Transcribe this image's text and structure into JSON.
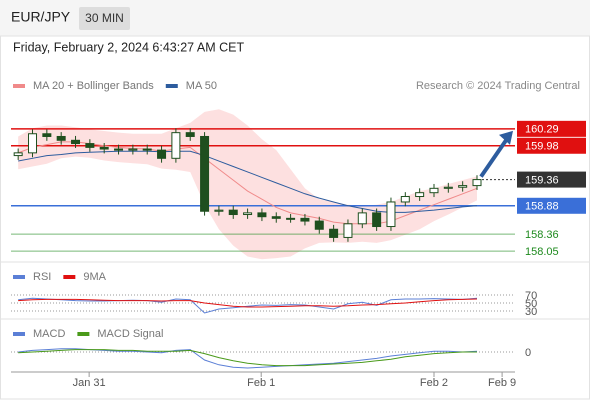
{
  "header": {
    "symbol": "EUR/JPY",
    "interval": "30 MIN",
    "datetime": "Friday, February 2, 2024 6:43:27 AM CET"
  },
  "chart_data": [
    {
      "type": "candlestick",
      "source": "Research © 2024 Trading Central",
      "x": [
        1,
        3,
        5,
        7,
        9,
        11,
        13,
        15,
        17,
        19,
        21,
        23,
        25,
        27,
        29,
        31,
        33,
        35,
        37,
        39,
        41,
        43,
        45,
        47,
        49,
        51,
        53,
        55,
        57,
        59,
        61,
        63,
        65
      ],
      "open": [
        159.8,
        159.85,
        160.2,
        160.15,
        160.08,
        160.02,
        159.95,
        159.92,
        159.9,
        159.92,
        159.9,
        159.75,
        160.22,
        160.15,
        158.78,
        158.8,
        158.72,
        158.75,
        158.68,
        158.65,
        158.65,
        158.6,
        158.45,
        158.3,
        158.55,
        158.75,
        158.5,
        158.95,
        159.05,
        159.12,
        159.2,
        159.22,
        159.25
      ],
      "high": [
        159.93,
        160.28,
        160.28,
        160.23,
        160.16,
        160.1,
        160.03,
        160.0,
        160.0,
        160.0,
        159.98,
        160.3,
        160.3,
        160.23,
        158.88,
        158.88,
        158.83,
        158.83,
        158.76,
        158.73,
        158.73,
        158.68,
        158.53,
        158.63,
        158.83,
        158.83,
        159.03,
        159.13,
        159.2,
        159.28,
        159.3,
        159.33,
        159.44
      ],
      "low": [
        159.72,
        159.77,
        160.07,
        160.0,
        159.94,
        159.87,
        159.84,
        159.82,
        159.82,
        159.82,
        159.67,
        159.67,
        160.07,
        158.7,
        158.7,
        158.64,
        158.64,
        158.6,
        158.57,
        158.57,
        158.52,
        158.37,
        158.22,
        158.22,
        158.47,
        158.42,
        158.42,
        158.87,
        158.97,
        159.04,
        159.12,
        159.14,
        159.17
      ],
      "close": [
        159.85,
        160.2,
        160.15,
        160.08,
        160.02,
        159.95,
        159.92,
        159.9,
        159.92,
        159.9,
        159.75,
        160.22,
        160.15,
        158.78,
        158.8,
        158.72,
        158.75,
        158.68,
        158.65,
        158.65,
        158.6,
        158.45,
        158.3,
        158.55,
        158.75,
        158.5,
        158.95,
        159.05,
        159.12,
        159.2,
        159.22,
        159.25,
        159.36
      ],
      "series": [
        {
          "name": "MA 20 + Bollinger Bands",
          "color": "#f08a8a",
          "band_color": "#fde0e0",
          "values": [
            159.85,
            159.95,
            160.0,
            160.05,
            160.05,
            160.02,
            159.98,
            159.95,
            159.93,
            159.92,
            159.88,
            159.92,
            159.95,
            159.75,
            159.55,
            159.35,
            159.15,
            159.0,
            158.85,
            158.75,
            158.7,
            158.65,
            158.58,
            158.55,
            158.55,
            158.55,
            158.6,
            158.7,
            158.8,
            158.9,
            159.0,
            159.1,
            159.2
          ],
          "upper": [
            160.15,
            160.3,
            160.35,
            160.35,
            160.32,
            160.28,
            160.25,
            160.22,
            160.2,
            160.2,
            160.2,
            160.3,
            160.4,
            160.6,
            160.65,
            160.55,
            160.35,
            160.1,
            159.9,
            159.55,
            159.2,
            159.0,
            158.95,
            158.9,
            158.88,
            158.9,
            158.95,
            159.05,
            159.15,
            159.2,
            159.28,
            159.35,
            159.42
          ],
          "lower": [
            159.55,
            159.6,
            159.65,
            159.75,
            159.78,
            159.76,
            159.71,
            159.68,
            159.66,
            159.64,
            159.56,
            159.54,
            159.5,
            158.9,
            158.45,
            158.15,
            157.95,
            157.9,
            157.92,
            157.95,
            158.1,
            158.2,
            158.21,
            158.2,
            158.22,
            158.2,
            158.25,
            158.35,
            158.45,
            158.6,
            158.72,
            158.85,
            158.98
          ]
        },
        {
          "name": "MA 50",
          "color": "#2d5c9e",
          "values": [
            159.7,
            159.75,
            159.8,
            159.82,
            159.85,
            159.86,
            159.87,
            159.88,
            159.88,
            159.88,
            159.87,
            159.88,
            159.88,
            159.8,
            159.7,
            159.6,
            159.5,
            159.4,
            159.3,
            159.2,
            159.1,
            159.02,
            158.95,
            158.88,
            158.83,
            158.78,
            158.76,
            158.76,
            158.78,
            158.8,
            158.83,
            158.86,
            158.88
          ]
        }
      ],
      "levels": [
        {
          "value": 160.29,
          "color": "#e01010",
          "style": "box"
        },
        {
          "value": 159.98,
          "color": "#e01010",
          "style": "box"
        },
        {
          "value": 158.88,
          "color": "#3a6fd8",
          "style": "box"
        },
        {
          "value": 158.36,
          "color": "#1e8a1e",
          "style": "text"
        },
        {
          "value": 158.05,
          "color": "#1e8a1e",
          "style": "text"
        }
      ],
      "ylim": [
        157.85,
        160.91
      ],
      "xlim": [
        0,
        70.3
      ],
      "xticks": [
        {
          "value": 10.9,
          "label": "Jan 31"
        },
        {
          "value": 34.9,
          "label": "Feb 1"
        },
        {
          "value": 59,
          "label": "Feb 2"
        },
        {
          "value": 68.5,
          "label": "Feb 9"
        }
      ]
    },
    {
      "type": "line",
      "ylim": [
        10,
        90
      ],
      "yticks": [
        70,
        50,
        30
      ],
      "series": [
        {
          "name": "RSI",
          "color": "#5b7fd6",
          "values": [
            58,
            62,
            60,
            58,
            56,
            55,
            55,
            56,
            57,
            56,
            52,
            60,
            58,
            25,
            35,
            38,
            42,
            45,
            44,
            46,
            45,
            40,
            35,
            48,
            52,
            44,
            58,
            60,
            60,
            61,
            60,
            59,
            62
          ]
        },
        {
          "name": "9MA",
          "color": "#e01010",
          "values": [
            56,
            58,
            59,
            59,
            59,
            58,
            57,
            56,
            56,
            56,
            55,
            56,
            56,
            50,
            46,
            42,
            40,
            40,
            41,
            42,
            43,
            43,
            42,
            43,
            45,
            46,
            48,
            50,
            53,
            56,
            58,
            59,
            60
          ]
        }
      ]
    },
    {
      "type": "line",
      "ylim": [
        -0.25,
        0.15
      ],
      "yticks": [
        0
      ],
      "series": [
        {
          "name": "MACD",
          "color": "#5b7fd6",
          "values": [
            0.0,
            0.02,
            0.03,
            0.04,
            0.04,
            0.03,
            0.02,
            0.01,
            0.01,
            0.0,
            -0.01,
            0.02,
            0.03,
            -0.1,
            -0.16,
            -0.19,
            -0.2,
            -0.19,
            -0.18,
            -0.17,
            -0.16,
            -0.15,
            -0.14,
            -0.12,
            -0.1,
            -0.08,
            -0.05,
            -0.03,
            -0.01,
            0.01,
            0.01,
            0.0,
            0.01
          ]
        },
        {
          "name": "MACD Signal",
          "color": "#4a9a1a",
          "values": [
            -0.01,
            0.0,
            0.01,
            0.02,
            0.03,
            0.03,
            0.03,
            0.02,
            0.02,
            0.01,
            0.01,
            0.01,
            0.02,
            -0.02,
            -0.07,
            -0.11,
            -0.14,
            -0.16,
            -0.17,
            -0.17,
            -0.17,
            -0.16,
            -0.15,
            -0.14,
            -0.13,
            -0.11,
            -0.09,
            -0.06,
            -0.04,
            -0.02,
            -0.01,
            0.0,
            0.0
          ]
        }
      ]
    }
  ]
}
